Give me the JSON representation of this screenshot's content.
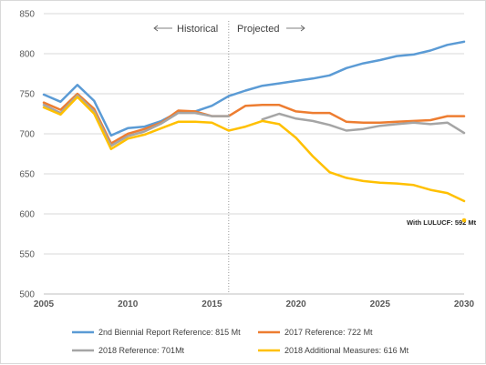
{
  "chart_data": {
    "type": "line",
    "x": [
      2005,
      2006,
      2007,
      2008,
      2009,
      2010,
      2011,
      2012,
      2013,
      2014,
      2015,
      2016,
      2017,
      2018,
      2019,
      2020,
      2021,
      2022,
      2023,
      2024,
      2025,
      2026,
      2027,
      2028,
      2029,
      2030
    ],
    "ylim": [
      500,
      850
    ],
    "xlim": [
      2005,
      2030
    ],
    "yticks": [
      500,
      550,
      600,
      650,
      700,
      750,
      800,
      850
    ],
    "xticks": [
      2005,
      2010,
      2015,
      2020,
      2025,
      2030
    ],
    "grid": true,
    "legend_position": "bottom",
    "divider_year": 2016,
    "annotations": {
      "historical": "Historical",
      "projected": "Projected",
      "lulucf_label": "With LULUCF: 592 Mt",
      "lulucf_point": {
        "x": 2030,
        "y": 592
      }
    },
    "series": [
      {
        "name": "2nd Biennial Report Reference: 815 Mt",
        "color": "#5b9bd5",
        "values": [
          749,
          740,
          761,
          741,
          698,
          707,
          709,
          716,
          727,
          728,
          735,
          747,
          754,
          760,
          763,
          766,
          769,
          773,
          782,
          788,
          792,
          797,
          799,
          804,
          811,
          815
        ]
      },
      {
        "name": "2017 Reference: 722 Mt",
        "color": "#ed7d31",
        "values": [
          739,
          730,
          750,
          731,
          688,
          700,
          706,
          714,
          729,
          728,
          722,
          722,
          735,
          736,
          736,
          728,
          726,
          726,
          715,
          714,
          714,
          715,
          716,
          717,
          722,
          722
        ]
      },
      {
        "name": "2018 Reference: 701Mt",
        "color": "#a5a5a5",
        "values": [
          736,
          726,
          748,
          728,
          685,
          697,
          703,
          713,
          726,
          726,
          722,
          722,
          null,
          718,
          725,
          719,
          716,
          711,
          704,
          706,
          710,
          712,
          714,
          712,
          714,
          701
        ]
      },
      {
        "name": "2018 Additional Measures: 616 Mt",
        "color": "#ffc000",
        "values": [
          733,
          724,
          746,
          725,
          681,
          694,
          699,
          707,
          715,
          715,
          714,
          704,
          709,
          716,
          712,
          695,
          672,
          652,
          645,
          641,
          639,
          638,
          636,
          630,
          626,
          616
        ]
      }
    ]
  }
}
